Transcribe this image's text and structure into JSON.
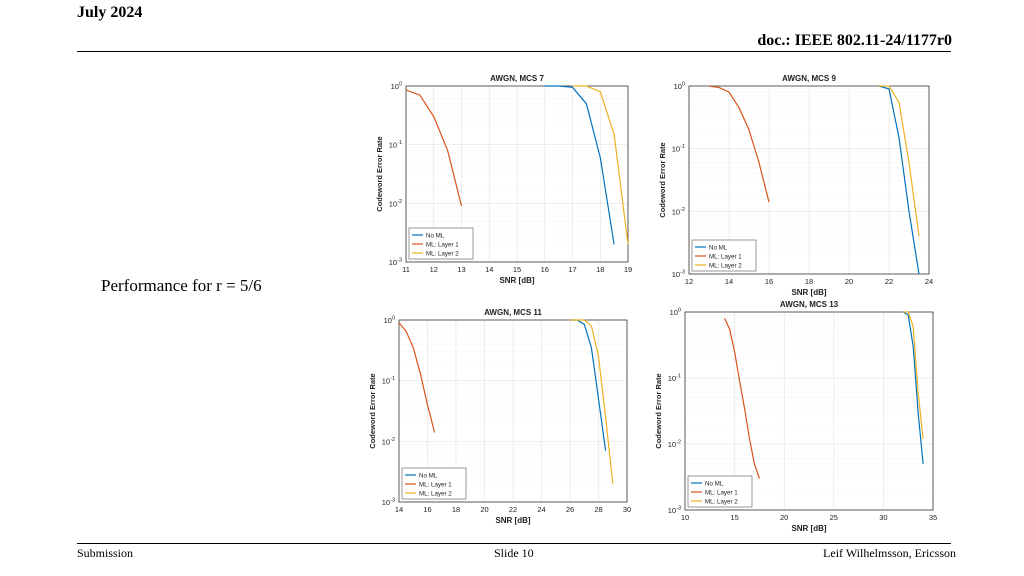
{
  "header": {
    "date": "July 2024",
    "doc": "doc.: IEEE 802.11-24/1177r0"
  },
  "side_text": "Performance for r = 5/6",
  "footer": {
    "left": "Submission",
    "center": "Slide 10",
    "right": "Leif Wilhelmsson, Ericsson"
  },
  "colors": {
    "no_ml": "#0072BD",
    "layer1": "#D95319",
    "layer2": "#EDB120"
  },
  "chart_data": [
    {
      "type": "line",
      "title": "AWGN, MCS 7",
      "xlabel": "SNR [dB]",
      "ylabel": "Codeword Error Rate",
      "xlim": [
        11,
        19
      ],
      "xticks": [
        11,
        12,
        13,
        14,
        15,
        16,
        17,
        18,
        19
      ],
      "ylim": [
        0.001,
        1
      ],
      "yscale": "log",
      "yticks": [
        "10^0",
        "10^-1",
        "10^-2",
        "10^-3"
      ],
      "grid": true,
      "legend": "bottom-left",
      "series": [
        {
          "name": "No ML",
          "x": [
            16,
            16.5,
            17,
            17.5,
            18,
            18.5
          ],
          "y": [
            1.0,
            1.0,
            0.95,
            0.5,
            0.06,
            0.002
          ]
        },
        {
          "name": "ML: Layer 1",
          "x": [
            11,
            11.5,
            12,
            12.5,
            13
          ],
          "y": [
            0.85,
            0.7,
            0.3,
            0.08,
            0.009
          ]
        },
        {
          "name": "ML: Layer 2",
          "x": [
            17,
            17.5,
            18,
            18.5,
            19
          ],
          "y": [
            1.0,
            1.0,
            0.8,
            0.15,
            0.002
          ]
        }
      ]
    },
    {
      "type": "line",
      "title": "AWGN, MCS 9",
      "xlabel": "SNR [dB]",
      "ylabel": "Codeword Error Rate",
      "xlim": [
        12,
        24
      ],
      "xticks": [
        12,
        14,
        16,
        18,
        20,
        22,
        24
      ],
      "ylim": [
        0.001,
        1
      ],
      "yscale": "log",
      "yticks": [
        "10^0",
        "10^-1",
        "10^-2",
        "10^-3"
      ],
      "grid": true,
      "legend": "bottom-left",
      "series": [
        {
          "name": "No ML",
          "x": [
            21.5,
            22,
            22.5,
            23,
            23.5
          ],
          "y": [
            1.0,
            0.9,
            0.15,
            0.01,
            0.001
          ]
        },
        {
          "name": "ML: Layer 1",
          "x": [
            13,
            13.5,
            14,
            14.5,
            15,
            15.5,
            16
          ],
          "y": [
            1.0,
            0.95,
            0.8,
            0.45,
            0.2,
            0.06,
            0.014
          ]
        },
        {
          "name": "ML: Layer 2",
          "x": [
            21.5,
            22,
            22.5,
            23,
            23.5
          ],
          "y": [
            1.0,
            1.0,
            0.55,
            0.06,
            0.004
          ]
        }
      ]
    },
    {
      "type": "line",
      "title": "AWGN, MCS 11",
      "xlabel": "SNR [dB]",
      "ylabel": "Codeword Error Rate",
      "xlim": [
        14,
        30
      ],
      "xticks": [
        14,
        16,
        18,
        20,
        22,
        24,
        26,
        28,
        30
      ],
      "ylim": [
        0.001,
        1
      ],
      "yscale": "log",
      "yticks": [
        "10^0",
        "10^-1",
        "10^-2",
        "10^-3"
      ],
      "grid": true,
      "legend": "bottom-left",
      "series": [
        {
          "name": "No ML",
          "x": [
            26,
            26.5,
            27,
            27.5,
            28,
            28.5
          ],
          "y": [
            1.0,
            1.0,
            0.85,
            0.35,
            0.05,
            0.007
          ]
        },
        {
          "name": "ML: Layer 1",
          "x": [
            14,
            14.5,
            15,
            15.5,
            16,
            16.5
          ],
          "y": [
            0.9,
            0.65,
            0.35,
            0.13,
            0.04,
            0.014
          ]
        },
        {
          "name": "ML: Layer 2",
          "x": [
            26,
            26.5,
            27,
            27.5,
            28,
            28.5,
            29
          ],
          "y": [
            1.0,
            1.0,
            1.0,
            0.8,
            0.25,
            0.025,
            0.002
          ]
        }
      ]
    },
    {
      "type": "line",
      "title": "AWGN, MCS 13",
      "xlabel": "SNR [dB]",
      "ylabel": "Codeword Error Rate",
      "xlim": [
        10,
        35
      ],
      "xticks": [
        10,
        15,
        20,
        25,
        30,
        35
      ],
      "ylim": [
        0.001,
        1
      ],
      "yscale": "log",
      "yticks": [
        "10^0",
        "10^-1",
        "10^-2",
        "10^-3"
      ],
      "grid": true,
      "legend": "bottom-left",
      "series": [
        {
          "name": "No ML",
          "x": [
            32,
            32.5,
            33,
            33.5,
            34
          ],
          "y": [
            1.0,
            0.9,
            0.3,
            0.03,
            0.005
          ]
        },
        {
          "name": "ML: Layer 1",
          "x": [
            14,
            14.5,
            15,
            15.5,
            16,
            16.5,
            17,
            17.5
          ],
          "y": [
            0.8,
            0.55,
            0.25,
            0.09,
            0.035,
            0.012,
            0.005,
            0.003
          ]
        },
        {
          "name": "ML: Layer 2",
          "x": [
            32,
            32.5,
            33,
            33.5,
            34
          ],
          "y": [
            1.0,
            1.0,
            0.6,
            0.06,
            0.012
          ]
        }
      ]
    }
  ]
}
